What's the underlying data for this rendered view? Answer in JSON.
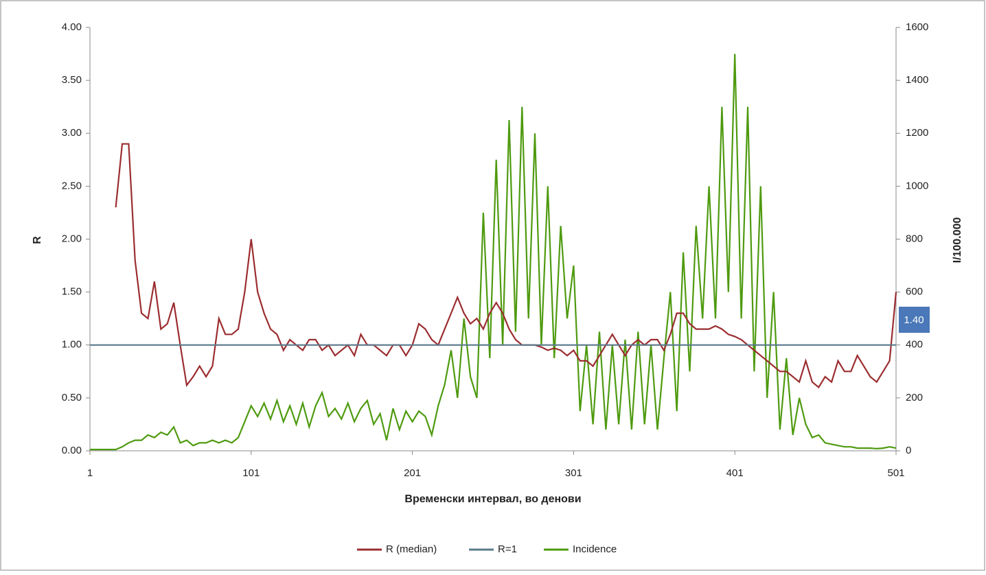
{
  "chart_data": {
    "type": "line",
    "xlabel": "Временски интервал, во денови",
    "ylabel": "R",
    "y2label": "I/100.000",
    "annotations": [
      "1.40"
    ],
    "x": [
      1,
      5,
      9,
      13,
      17,
      21,
      25,
      29,
      33,
      37,
      41,
      45,
      49,
      53,
      57,
      61,
      65,
      69,
      73,
      77,
      81,
      85,
      89,
      93,
      97,
      101,
      105,
      109,
      113,
      117,
      121,
      125,
      129,
      133,
      137,
      141,
      145,
      149,
      153,
      157,
      161,
      165,
      169,
      173,
      177,
      181,
      185,
      189,
      193,
      197,
      201,
      205,
      209,
      213,
      217,
      221,
      225,
      229,
      233,
      237,
      241,
      245,
      249,
      253,
      257,
      261,
      265,
      269,
      273,
      277,
      281,
      285,
      289,
      293,
      297,
      301,
      305,
      309,
      313,
      317,
      321,
      325,
      329,
      333,
      337,
      341,
      345,
      349,
      353,
      357,
      361,
      365,
      369,
      373,
      377,
      381,
      385,
      389,
      393,
      397,
      401,
      405,
      409,
      413,
      417,
      421,
      425,
      429,
      433,
      437,
      441,
      445,
      449,
      453,
      457,
      461,
      465,
      469,
      473,
      477,
      481,
      485,
      489,
      493,
      497,
      501
    ],
    "series": [
      {
        "name": "R (median)",
        "color": "#9b2d30",
        "values": [
          null,
          null,
          null,
          null,
          2.3,
          2.9,
          2.9,
          1.8,
          1.3,
          1.25,
          1.6,
          1.15,
          1.2,
          1.4,
          1.0,
          0.62,
          0.7,
          0.8,
          0.7,
          0.8,
          1.25,
          1.1,
          1.1,
          1.15,
          1.5,
          2.0,
          1.5,
          1.3,
          1.15,
          1.1,
          0.95,
          1.05,
          1.0,
          0.95,
          1.05,
          1.05,
          0.95,
          1.0,
          0.9,
          0.95,
          1.0,
          0.9,
          1.1,
          1.0,
          1.0,
          0.95,
          0.9,
          1.0,
          1.0,
          0.9,
          1.0,
          1.2,
          1.15,
          1.05,
          1.0,
          1.15,
          1.3,
          1.45,
          1.3,
          1.2,
          1.25,
          1.15,
          1.3,
          1.4,
          1.3,
          1.15,
          1.05,
          1.0,
          1.0,
          1.0,
          0.98,
          0.95,
          0.97,
          0.95,
          0.9,
          0.95,
          0.85,
          0.85,
          0.8,
          0.9,
          1.0,
          1.1,
          1.0,
          0.9,
          1.0,
          1.05,
          1.0,
          1.05,
          1.05,
          0.95,
          1.1,
          1.3,
          1.3,
          1.2,
          1.15,
          1.15,
          1.15,
          1.18,
          1.15,
          1.1,
          1.08,
          1.05,
          1.0,
          0.95,
          0.9,
          0.85,
          0.8,
          0.75,
          0.75,
          0.7,
          0.65,
          0.85,
          0.65,
          0.6,
          0.7,
          0.65,
          0.85,
          0.75,
          0.75,
          0.9,
          0.8,
          0.7,
          0.65,
          0.75,
          0.85,
          1.5
        ]
      },
      {
        "name": "R=1",
        "color": "#5a7a8c",
        "x": [
          1,
          501
        ],
        "values": [
          1,
          1
        ]
      },
      {
        "name": "Incidence",
        "color": "#4e9a0f",
        "axis": "y2",
        "values": [
          5,
          5,
          5,
          5,
          5,
          15,
          30,
          40,
          40,
          60,
          50,
          70,
          60,
          90,
          30,
          40,
          20,
          30,
          30,
          40,
          30,
          40,
          30,
          50,
          110,
          170,
          130,
          180,
          120,
          190,
          110,
          170,
          100,
          180,
          90,
          170,
          220,
          130,
          160,
          120,
          180,
          110,
          160,
          190,
          100,
          140,
          40,
          160,
          80,
          150,
          110,
          150,
          130,
          60,
          170,
          250,
          380,
          200,
          500,
          280,
          200,
          900,
          350,
          1100,
          400,
          1250,
          450,
          1300,
          500,
          1200,
          400,
          1000,
          350,
          850,
          500,
          700,
          150,
          400,
          100,
          450,
          80,
          400,
          100,
          420,
          80,
          450,
          100,
          400,
          80,
          350,
          600,
          150,
          750,
          300,
          850,
          500,
          1000,
          500,
          1300,
          600,
          1500,
          500,
          1300,
          300,
          1000,
          200,
          600,
          80,
          350,
          60,
          200,
          100,
          50,
          60,
          30,
          25,
          20,
          15,
          15,
          10,
          10,
          10,
          8,
          10,
          15,
          10
        ]
      }
    ],
    "xlim": [
      1,
      501
    ],
    "xticks": [
      1,
      101,
      201,
      301,
      401,
      501
    ],
    "ylim": [
      0,
      4
    ],
    "yticks": [
      {
        "value": 0,
        "label": "0.00"
      },
      {
        "value": 0.5,
        "label": "0.50"
      },
      {
        "value": 1,
        "label": "1.00"
      },
      {
        "value": 1.5,
        "label": "1.50"
      },
      {
        "value": 2,
        "label": "2.00"
      },
      {
        "value": 2.5,
        "label": "2.50"
      },
      {
        "value": 3,
        "label": "3.00"
      },
      {
        "value": 3.5,
        "label": "3.50"
      },
      {
        "value": 4,
        "label": "4.00"
      }
    ],
    "y2lim": [
      0,
      1600
    ],
    "y2ticks": [
      0,
      200,
      400,
      600,
      800,
      1000,
      1200,
      1400,
      1600
    ],
    "legend": "bottom"
  }
}
